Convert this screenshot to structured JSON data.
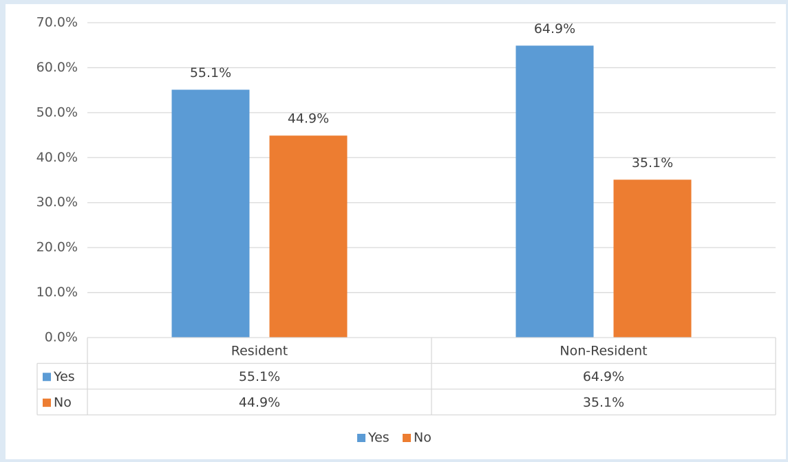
{
  "chart_data": {
    "type": "bar",
    "categories": [
      "Resident",
      "Non-Resident"
    ],
    "series": [
      {
        "name": "Yes",
        "values": [
          55.1,
          64.9
        ],
        "labels": [
          "55.1%",
          "64.9%"
        ],
        "color": "#5b9bd5"
      },
      {
        "name": "No",
        "values": [
          44.9,
          35.1
        ],
        "labels": [
          "44.9%",
          "35.1%"
        ],
        "color": "#ed7d31"
      }
    ],
    "ylim": [
      0,
      70
    ],
    "yticks": [
      "0.0%",
      "10.0%",
      "20.0%",
      "30.0%",
      "40.0%",
      "50.0%",
      "60.0%",
      "70.0%"
    ],
    "grid": true,
    "data_table": true,
    "legend_position": "bottom"
  }
}
